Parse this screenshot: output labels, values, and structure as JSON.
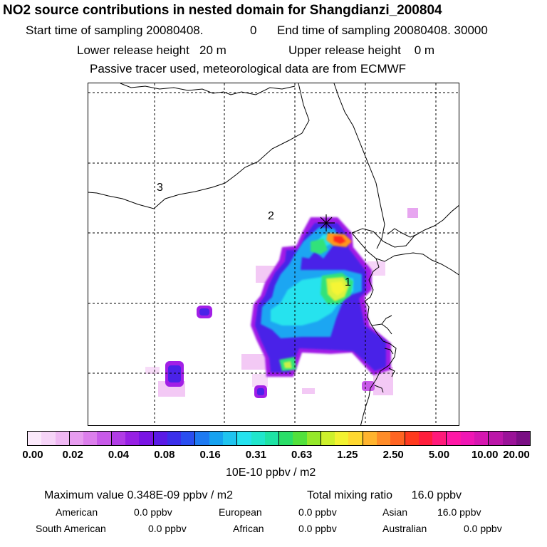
{
  "header": {
    "title": "NO2 source contributions in nested domain for Shangdianzi_200804",
    "line1_start": "Start time of sampling 20080408.",
    "line1_start_val": "0",
    "line1_end": "End time of sampling 20080408. 30000",
    "line2_lower": "Lower release height   20 m",
    "line2_upper": "Upper release height    0 m",
    "line3": "Passive tracer used, meteorological data are from ECMWF"
  },
  "map": {
    "region_labels": [
      "1",
      "2",
      "3"
    ],
    "receptor_marker": "star-receptor",
    "plume_colors": {
      "light_pink": "#f3c9f5",
      "pink_magenta": "#e58ef0",
      "purple": "#a21fe6",
      "blue_purple": "#4a22e8",
      "cyan_blue": "#1fa6f2",
      "cyan": "#26e3ee",
      "green": "#33e27a",
      "yellow_green": "#c9f04a",
      "yellow": "#f5f534",
      "orange": "#ff9a1a",
      "red": "#ff2a1a"
    }
  },
  "legend": {
    "colors": [
      "#fbe9fb",
      "#f6d4f8",
      "#efb8f3",
      "#e79cef",
      "#dc7eec",
      "#c85ae9",
      "#b13ce6",
      "#9720e4",
      "#7a14e4",
      "#5a1ae6",
      "#3b2fea",
      "#2a4ef0",
      "#1e7af2",
      "#16a2f0",
      "#1fc4ef",
      "#25e2ee",
      "#20e6cc",
      "#1ee3a4",
      "#2ade68",
      "#52e13c",
      "#95e82a",
      "#cdf02c",
      "#f2f231",
      "#ffd830",
      "#ffb42e",
      "#ff8c28",
      "#ff6422",
      "#ff3a1e",
      "#ff1e3c",
      "#ff1a7a",
      "#ff18a6",
      "#f016b4",
      "#d616b0",
      "#bb16a8",
      "#9a1298",
      "#7a0e84"
    ],
    "tick_labels": [
      "0.00",
      "0.02",
      "0.04",
      "0.08",
      "0.16",
      "0.31",
      "0.63",
      "1.25",
      "2.50",
      "5.00",
      "10.00",
      "20.00"
    ],
    "units": "10E-10 ppbv / m2"
  },
  "stats": {
    "max_value": "Maximum value  0.348E-09 ppbv / m2",
    "total_mixing": "Total mixing ratio      16.0 ppbv",
    "american": "American",
    "american_val": "0.0 ppbv",
    "european": "European",
    "european_val": "0.0 ppbv",
    "asian": "Asian",
    "asian_val": "16.0 ppbv",
    "south_american": "South American",
    "south_american_val": "0.0 ppbv",
    "african": "African",
    "african_val": "0.0 ppbv",
    "australian": "Australian",
    "australian_val": "0.0 ppbv"
  }
}
